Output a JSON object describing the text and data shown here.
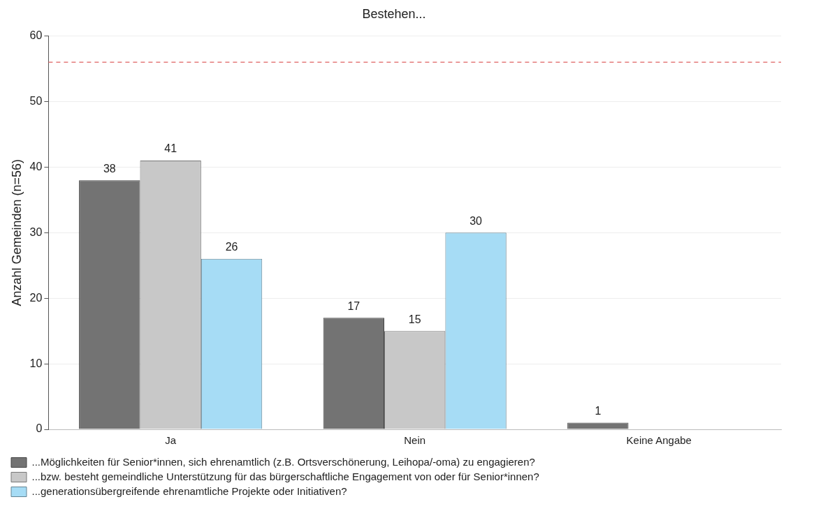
{
  "chart_data": {
    "type": "bar",
    "title": "Bestehen...",
    "ylabel": "Anzahl Gemeinden (n=56)",
    "categories": [
      "Ja",
      "Nein",
      "Keine Angabe"
    ],
    "series": [
      {
        "name": "...Möglichkeiten für Senior*innen, sich ehrenamtlich (z.B. Ortsverschönerung, Leihopa/-oma) zu engagieren?",
        "color": "#737373",
        "values": [
          38,
          17,
          1
        ]
      },
      {
        "name": "...bzw. besteht gemeindliche Unterstützung für das bürgerschaftliche Engagement von oder für Senior*innen?",
        "color": "#c8c8c8",
        "values": [
          41,
          15,
          null
        ]
      },
      {
        "name": "...generationsübergreifende ehrenamtliche Projekte oder Initiativen?",
        "color": "#a6dcf5",
        "values": [
          26,
          30,
          null
        ]
      }
    ],
    "ylim": [
      0,
      60
    ],
    "yticks": [
      0,
      10,
      20,
      30,
      40,
      50,
      60
    ],
    "grid": "y",
    "legend": "bottom",
    "data_labels": true,
    "ref_lines": [
      {
        "axis": "y",
        "value": 56,
        "color": "#e06060",
        "line_style": "dashed"
      }
    ]
  }
}
